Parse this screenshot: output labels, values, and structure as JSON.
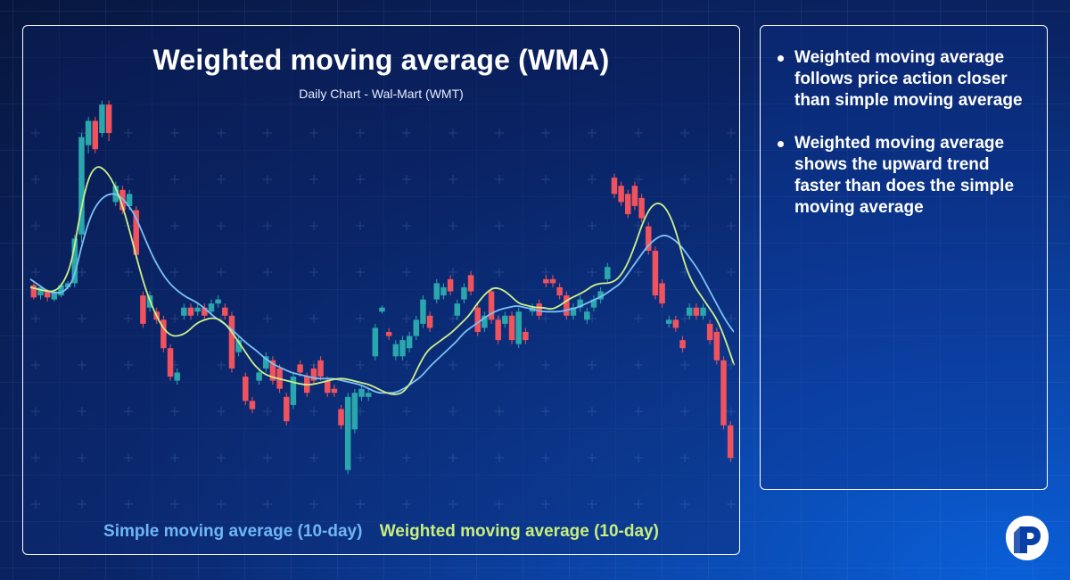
{
  "colors": {
    "candle_up": "#29a7ad",
    "candle_down": "#f0525e",
    "sma_line": "#7cc0f5",
    "wma_line": "#cdf08a"
  },
  "chart_data": {
    "type": "candlestick",
    "title": "Weighted moving average (WMA)",
    "subtitle": "Daily Chart - Wal-Mart (WMT)",
    "xlabel": "",
    "ylabel": "",
    "ylim": [
      0,
      100
    ],
    "grid": true,
    "candles": [
      {
        "o": 51.5,
        "c": 48.5,
        "h": 52,
        "l": 48
      },
      {
        "o": 49,
        "c": 51,
        "h": 51.5,
        "l": 48
      },
      {
        "o": 50,
        "c": 48.5,
        "h": 50.5,
        "l": 47.5
      },
      {
        "o": 48,
        "c": 50,
        "h": 50.5,
        "l": 47.5
      },
      {
        "o": 49,
        "c": 51.5,
        "h": 52,
        "l": 48.5
      },
      {
        "o": 51,
        "c": 52,
        "h": 52.5,
        "l": 50.5
      },
      {
        "o": 52,
        "c": 63,
        "h": 64,
        "l": 51
      },
      {
        "o": 64,
        "c": 88,
        "h": 89,
        "l": 62
      },
      {
        "o": 86,
        "c": 92,
        "h": 93,
        "l": 84
      },
      {
        "o": 92,
        "c": 85,
        "h": 93,
        "l": 84
      },
      {
        "o": 89,
        "c": 96,
        "h": 97,
        "l": 88
      },
      {
        "o": 96,
        "c": 89,
        "h": 97,
        "l": 87
      },
      {
        "o": 72,
        "c": 76,
        "h": 77,
        "l": 71
      },
      {
        "o": 75,
        "c": 70,
        "h": 76,
        "l": 69
      },
      {
        "o": 71,
        "c": 74,
        "h": 75,
        "l": 70
      },
      {
        "o": 70,
        "c": 59,
        "h": 71,
        "l": 58
      },
      {
        "o": 49,
        "c": 42,
        "h": 50,
        "l": 41
      },
      {
        "o": 46,
        "c": 49,
        "h": 50,
        "l": 45
      },
      {
        "o": 45,
        "c": 43,
        "h": 46,
        "l": 42
      },
      {
        "o": 43,
        "c": 36,
        "h": 44,
        "l": 35
      },
      {
        "o": 36,
        "c": 29,
        "h": 37,
        "l": 28
      },
      {
        "o": 28,
        "c": 30,
        "h": 31,
        "l": 27
      },
      {
        "o": 44,
        "c": 46,
        "h": 47,
        "l": 43
      },
      {
        "o": 46,
        "c": 44,
        "h": 47,
        "l": 43
      },
      {
        "o": 45,
        "c": 46,
        "h": 47,
        "l": 44
      },
      {
        "o": 46,
        "c": 44,
        "h": 47,
        "l": 43
      },
      {
        "o": 45,
        "c": 47,
        "h": 48,
        "l": 44
      },
      {
        "o": 47,
        "c": 48,
        "h": 49,
        "l": 46
      },
      {
        "o": 46,
        "c": 44,
        "h": 47,
        "l": 43
      },
      {
        "o": 44,
        "c": 31,
        "h": 45,
        "l": 30
      },
      {
        "o": 35,
        "c": 38,
        "h": 39,
        "l": 34
      },
      {
        "o": 29,
        "c": 23,
        "h": 30,
        "l": 22
      },
      {
        "o": 23,
        "c": 21,
        "h": 24,
        "l": 20
      },
      {
        "o": 28,
        "c": 30,
        "h": 31,
        "l": 27
      },
      {
        "o": 31,
        "c": 34,
        "h": 35,
        "l": 30
      },
      {
        "o": 33,
        "c": 28,
        "h": 34,
        "l": 27
      },
      {
        "o": 31,
        "c": 26,
        "h": 32,
        "l": 25
      },
      {
        "o": 24,
        "c": 18,
        "h": 25,
        "l": 17
      },
      {
        "o": 22,
        "c": 29,
        "h": 30,
        "l": 21
      },
      {
        "o": 32,
        "c": 30,
        "h": 33,
        "l": 29
      },
      {
        "o": 29,
        "c": 25,
        "h": 30,
        "l": 24
      },
      {
        "o": 31,
        "c": 28,
        "h": 32,
        "l": 27
      },
      {
        "o": 33,
        "c": 29,
        "h": 34,
        "l": 28
      },
      {
        "o": 28,
        "c": 25,
        "h": 29,
        "l": 24
      },
      {
        "o": 26,
        "c": 25,
        "h": 27,
        "l": 24
      },
      {
        "o": 21,
        "c": 17,
        "h": 22,
        "l": 16
      },
      {
        "o": 6,
        "c": 24,
        "h": 25,
        "l": 5
      },
      {
        "o": 16,
        "c": 25,
        "h": 26,
        "l": 15
      },
      {
        "o": 24,
        "c": 26,
        "h": 27,
        "l": 23
      },
      {
        "o": 24,
        "c": 25,
        "h": 26,
        "l": 23
      },
      {
        "o": 34,
        "c": 41,
        "h": 42,
        "l": 33
      },
      {
        "o": 45,
        "c": 46,
        "h": 46.5,
        "l": 44.5
      },
      {
        "o": 40,
        "c": 39,
        "h": 41,
        "l": 38
      },
      {
        "o": 34,
        "c": 37,
        "h": 38,
        "l": 33
      },
      {
        "o": 34,
        "c": 38,
        "h": 39,
        "l": 33
      },
      {
        "o": 36,
        "c": 39,
        "h": 40,
        "l": 35
      },
      {
        "o": 39,
        "c": 43,
        "h": 44,
        "l": 38
      },
      {
        "o": 42,
        "c": 48,
        "h": 49,
        "l": 41
      },
      {
        "o": 44,
        "c": 41,
        "h": 45,
        "l": 40
      },
      {
        "o": 48,
        "c": 52,
        "h": 53,
        "l": 47
      },
      {
        "o": 49,
        "c": 51,
        "h": 52,
        "l": 48
      },
      {
        "o": 53,
        "c": 50,
        "h": 54,
        "l": 49
      },
      {
        "o": 44,
        "c": 47,
        "h": 48,
        "l": 43
      },
      {
        "o": 48,
        "c": 51,
        "h": 52,
        "l": 47
      },
      {
        "o": 54,
        "c": 50,
        "h": 55,
        "l": 49
      },
      {
        "o": 46,
        "c": 40,
        "h": 47,
        "l": 39
      },
      {
        "o": 41,
        "c": 44,
        "h": 45,
        "l": 40
      },
      {
        "o": 50,
        "c": 43,
        "h": 51,
        "l": 42
      },
      {
        "o": 43,
        "c": 38,
        "h": 44,
        "l": 37
      },
      {
        "o": 42,
        "c": 44,
        "h": 45,
        "l": 41
      },
      {
        "o": 44,
        "c": 38,
        "h": 45,
        "l": 37
      },
      {
        "o": 37,
        "c": 45,
        "h": 46,
        "l": 36
      },
      {
        "o": 40,
        "c": 38,
        "h": 41,
        "l": 37
      },
      {
        "o": 45,
        "c": 46,
        "h": 47,
        "l": 44
      },
      {
        "o": 47,
        "c": 44,
        "h": 48,
        "l": 43
      },
      {
        "o": 53,
        "c": 52,
        "h": 54,
        "l": 51
      },
      {
        "o": 53,
        "c": 52,
        "h": 54,
        "l": 51
      },
      {
        "o": 51,
        "c": 49,
        "h": 52,
        "l": 48
      },
      {
        "o": 49,
        "c": 44,
        "h": 50,
        "l": 43
      },
      {
        "o": 44,
        "c": 46,
        "h": 47,
        "l": 43
      },
      {
        "o": 46,
        "c": 48,
        "h": 49,
        "l": 45
      },
      {
        "o": 43,
        "c": 45,
        "h": 46,
        "l": 42
      },
      {
        "o": 46,
        "c": 48,
        "h": 49,
        "l": 45
      },
      {
        "o": 48,
        "c": 50,
        "h": 51,
        "l": 47
      },
      {
        "o": 53,
        "c": 56,
        "h": 57,
        "l": 52
      },
      {
        "o": 78,
        "c": 74,
        "h": 79,
        "l": 73
      },
      {
        "o": 76,
        "c": 72,
        "h": 77,
        "l": 71
      },
      {
        "o": 74,
        "c": 69,
        "h": 75,
        "l": 68
      },
      {
        "o": 76,
        "c": 71,
        "h": 77,
        "l": 70
      },
      {
        "o": 73,
        "c": 68,
        "h": 74,
        "l": 67
      },
      {
        "o": 66,
        "c": 60,
        "h": 67,
        "l": 59
      },
      {
        "o": 60,
        "c": 49,
        "h": 61,
        "l": 48
      },
      {
        "o": 52,
        "c": 47,
        "h": 53,
        "l": 46
      },
      {
        "o": 42,
        "c": 43,
        "h": 44,
        "l": 41
      },
      {
        "o": 43,
        "c": 41,
        "h": 44,
        "l": 40
      },
      {
        "o": 38,
        "c": 36,
        "h": 39,
        "l": 35
      },
      {
        "o": 44,
        "c": 46,
        "h": 47,
        "l": 43
      },
      {
        "o": 46,
        "c": 44,
        "h": 47,
        "l": 43
      },
      {
        "o": 44,
        "c": 46,
        "h": 47,
        "l": 43
      },
      {
        "o": 42,
        "c": 38,
        "h": 43,
        "l": 37
      },
      {
        "o": 40,
        "c": 33,
        "h": 41,
        "l": 32
      },
      {
        "o": 33,
        "c": 17,
        "h": 34,
        "l": 16
      },
      {
        "o": 17,
        "c": 9,
        "h": 18,
        "l": 8
      }
    ],
    "series": [
      {
        "name": "Simple moving average (10-day)",
        "values": [
          53,
          51.5,
          50,
          49.5,
          50,
          53,
          62,
          69,
          72.5,
          74,
          74,
          72,
          69,
          64,
          59,
          55,
          52,
          50,
          48.5,
          47.5,
          46,
          44,
          42.5,
          41,
          39,
          37,
          35.5,
          33.5,
          32,
          31,
          30,
          29.5,
          29,
          28.5,
          28.5,
          28.5,
          28,
          27.5,
          27,
          26,
          25,
          25,
          25,
          26,
          27.5,
          29,
          31.5,
          33.5,
          35.5,
          37.5,
          40,
          41.5,
          43,
          44.5,
          45.5,
          46,
          46.5,
          46,
          45.5,
          45,
          45,
          45,
          45.5,
          46,
          47,
          48,
          49,
          50.5,
          52,
          55,
          58,
          61,
          63,
          64,
          63,
          61,
          58,
          55,
          51,
          47,
          43,
          40
        ]
      },
      {
        "name": "Weighted moving average (10-day)",
        "values": [
          51,
          50.5,
          50,
          50,
          52,
          57,
          69,
          78,
          81,
          80,
          77,
          72,
          65,
          57,
          50,
          45,
          41,
          39,
          39,
          40,
          42,
          43,
          43.5,
          43,
          41,
          38,
          35,
          32,
          30,
          29,
          28.5,
          28,
          27.5,
          27,
          27,
          27.5,
          28,
          28.5,
          28.5,
          28,
          27.5,
          27,
          26,
          25,
          24.5,
          25,
          27.5,
          32,
          35.5,
          37,
          38.5,
          40,
          42,
          44,
          47,
          49.5,
          51,
          50.5,
          49,
          47,
          46.5,
          46,
          46,
          45.5,
          46.5,
          48,
          49,
          50,
          51.5,
          52,
          52,
          53,
          56,
          61,
          67,
          71,
          72,
          70,
          65,
          57,
          52,
          49,
          46,
          43,
          38,
          32
        ]
      }
    ],
    "legend": [
      "Simple moving average (10-day)",
      "Weighted moving average (10-day)"
    ]
  },
  "info": {
    "bullets": [
      "Weighted moving average follows price action closer than simple moving average",
      "Weighted moving average shows the upward trend faster than does the simple moving average"
    ]
  },
  "logo": {
    "icon": "brand-p-logo-icon"
  }
}
